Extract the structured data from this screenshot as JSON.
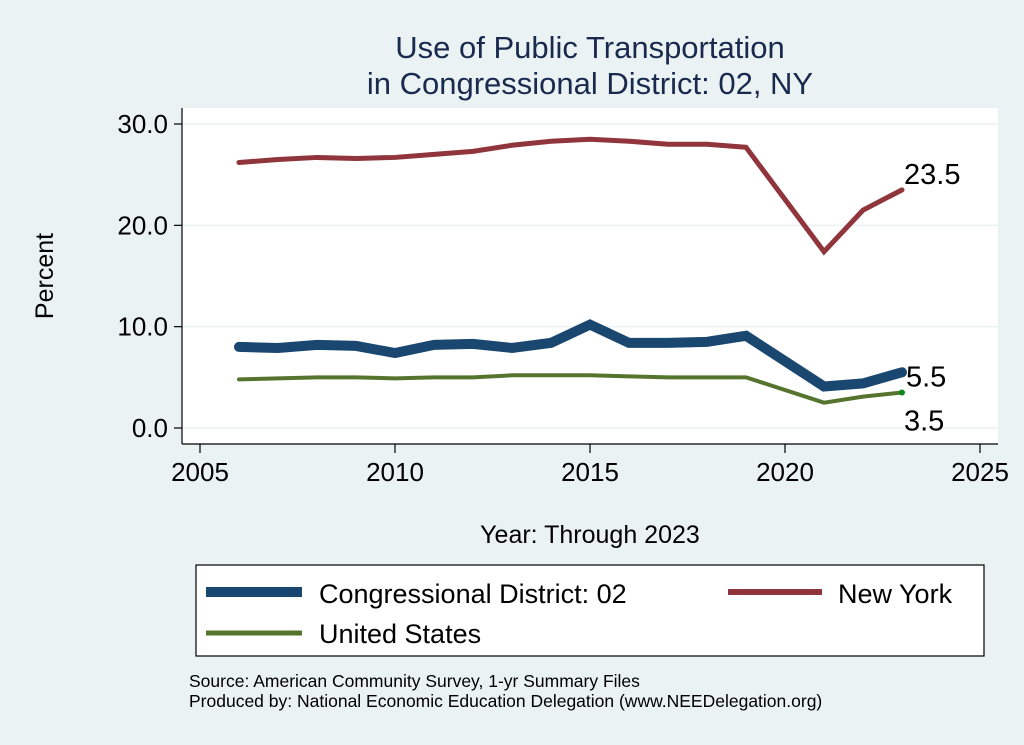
{
  "chart_data": {
    "type": "line",
    "title": [
      "Use of Public Transportation",
      "in Congressional District: 02, NY"
    ],
    "xlabel": "Year: Through 2023",
    "ylabel": "Percent",
    "xlim": [
      2005,
      2025
    ],
    "ylim": [
      0,
      30
    ],
    "xticks": [
      2005,
      2010,
      2015,
      2020,
      2025
    ],
    "yticks": [
      0,
      10,
      20,
      30
    ],
    "ytick_labels": [
      "0.0",
      "10.0",
      "20.0",
      "30.0"
    ],
    "grid": "horizontal",
    "x": [
      2006,
      2007,
      2008,
      2009,
      2010,
      2011,
      2012,
      2013,
      2014,
      2015,
      2016,
      2017,
      2018,
      2019,
      2021,
      2022,
      2023
    ],
    "series": [
      {
        "name": "Congressional District: 02",
        "color": "#1a476f",
        "values": [
          8.0,
          7.9,
          8.2,
          8.1,
          7.4,
          8.2,
          8.3,
          7.9,
          8.4,
          10.2,
          8.4,
          8.4,
          8.5,
          9.1,
          4.1,
          4.4,
          5.5
        ],
        "end_label": "5.5"
      },
      {
        "name": "New York",
        "color": "#90353b",
        "values": [
          26.2,
          26.5,
          26.7,
          26.6,
          26.7,
          27.0,
          27.3,
          27.9,
          28.3,
          28.5,
          28.3,
          28.0,
          28.0,
          27.7,
          17.4,
          21.5,
          23.5
        ],
        "end_label": "23.5"
      },
      {
        "name": "United States",
        "color": "#55752f",
        "values": [
          4.8,
          4.9,
          5.0,
          5.0,
          4.9,
          5.0,
          5.0,
          5.2,
          5.2,
          5.2,
          5.1,
          5.0,
          5.0,
          5.0,
          2.5,
          3.1,
          3.5
        ],
        "end_label": "3.5"
      }
    ],
    "legend": {
      "placement": "bottom",
      "entries": [
        "Congressional District: 02",
        "New York",
        "United States"
      ]
    },
    "notes": [
      "Source: American Community Survey, 1-yr Summary Files",
      "Produced by: National Economic Education Delegation (www.NEEDelegation.org)"
    ]
  }
}
